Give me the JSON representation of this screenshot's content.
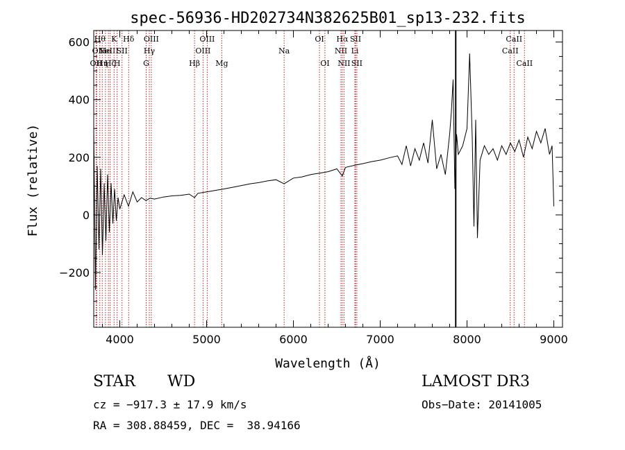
{
  "chart_data": {
    "type": "line",
    "title": "spec-56936-HD202734N382625B01_sp13-232.fits",
    "xlabel": "Wavelength (Å)",
    "ylabel": "Flux (relative)",
    "xlim": [
      3700,
      9100
    ],
    "ylim": [
      -390,
      640
    ],
    "x_ticks": [
      4000,
      5000,
      6000,
      7000,
      8000,
      9000
    ],
    "y_ticks": [
      -200,
      0,
      200,
      400,
      600
    ],
    "grid": false,
    "spectrum": {
      "name": "flux",
      "x": [
        3700,
        3720,
        3740,
        3760,
        3780,
        3800,
        3820,
        3840,
        3860,
        3880,
        3900,
        3920,
        3940,
        3960,
        3980,
        4000,
        4050,
        4100,
        4150,
        4200,
        4250,
        4300,
        4350,
        4400,
        4500,
        4600,
        4700,
        4800,
        4861,
        4900,
        5000,
        5100,
        5200,
        5300,
        5400,
        5500,
        5600,
        5700,
        5800,
        5893,
        6000,
        6100,
        6200,
        6300,
        6400,
        6500,
        6563,
        6600,
        6700,
        6800,
        6900,
        7000,
        7100,
        7200,
        7250,
        7300,
        7350,
        7400,
        7450,
        7500,
        7550,
        7600,
        7650,
        7700,
        7750,
        7800,
        7820,
        7840,
        7860,
        7880,
        7900,
        7950,
        8000,
        8030,
        8060,
        8080,
        8100,
        8120,
        8150,
        8200,
        8250,
        8300,
        8350,
        8400,
        8450,
        8500,
        8550,
        8600,
        8650,
        8700,
        8750,
        8800,
        8850,
        8900,
        8950,
        8980,
        9000
      ],
      "y": [
        300,
        -260,
        170,
        -120,
        160,
        -140,
        110,
        -90,
        140,
        -60,
        110,
        -30,
        90,
        -20,
        60,
        20,
        70,
        30,
        80,
        45,
        60,
        50,
        58,
        55,
        62,
        66,
        68,
        72,
        60,
        75,
        80,
        85,
        90,
        96,
        102,
        108,
        112,
        118,
        122,
        108,
        128,
        132,
        140,
        145,
        150,
        160,
        135,
        165,
        172,
        178,
        185,
        190,
        198,
        205,
        175,
        240,
        170,
        230,
        190,
        250,
        180,
        330,
        160,
        210,
        140,
        280,
        360,
        470,
        90,
        280,
        210,
        240,
        300,
        560,
        270,
        -40,
        330,
        -80,
        190,
        240,
        210,
        230,
        190,
        240,
        210,
        250,
        220,
        260,
        200,
        270,
        230,
        290,
        250,
        300,
        210,
        240,
        30
      ]
    },
    "artifact_line_x": 7870,
    "line_markers": [
      {
        "x": 3727,
        "label": "OII",
        "row": 2
      },
      {
        "x": 3734,
        "label": "OI",
        "row": 1
      },
      {
        "x": 3770,
        "label": "Hθ",
        "row": 0
      },
      {
        "x": 3798,
        "label": "Hη",
        "row": 2
      },
      {
        "x": 3835,
        "label": "He",
        "row": 1
      },
      {
        "x": 3869,
        "label": "NeIII",
        "row": 1
      },
      {
        "x": 3889,
        "label": "Hζ",
        "row": 2
      },
      {
        "x": 3934,
        "label": "K",
        "row": 0
      },
      {
        "x": 3969,
        "label": "H",
        "row": 2
      },
      {
        "x": 4026,
        "label": "SII",
        "row": 1
      },
      {
        "x": 4102,
        "label": "Hδ",
        "row": 0
      },
      {
        "x": 4304,
        "label": "G",
        "row": 2
      },
      {
        "x": 4340,
        "label": "Hγ",
        "row": 1
      },
      {
        "x": 4363,
        "label": "OIII",
        "row": 0
      },
      {
        "x": 4861,
        "label": "Hβ",
        "row": 2
      },
      {
        "x": 4959,
        "label": "OIII",
        "row": 1
      },
      {
        "x": 5007,
        "label": "OIII",
        "row": 0
      },
      {
        "x": 5175,
        "label": "Mg",
        "row": 2
      },
      {
        "x": 5893,
        "label": "Na",
        "row": 1
      },
      {
        "x": 6300,
        "label": "OI",
        "row": 0
      },
      {
        "x": 6363,
        "label": "OI",
        "row": 2
      },
      {
        "x": 6548,
        "label": "NII",
        "row": 1
      },
      {
        "x": 6563,
        "label": "Hα",
        "row": 0
      },
      {
        "x": 6583,
        "label": "NII",
        "row": 2
      },
      {
        "x": 6708,
        "label": "Li",
        "row": 1
      },
      {
        "x": 6716,
        "label": "SII",
        "row": 0
      },
      {
        "x": 6731,
        "label": "SII",
        "row": 2
      },
      {
        "x": 8498,
        "label": "CaII",
        "row": 1
      },
      {
        "x": 8542,
        "label": "CaII",
        "row": 0
      },
      {
        "x": 8662,
        "label": "CaII",
        "row": 2
      }
    ]
  },
  "info": {
    "class": "STAR",
    "subclass": "WD",
    "survey": "LAMOST DR3",
    "redshift": "cz = −917.3 ± 17.9 km/s",
    "obs_date": "Obs−Date: 20141005",
    "coords": "RA = 308.88459, DEC =  38.94166"
  }
}
